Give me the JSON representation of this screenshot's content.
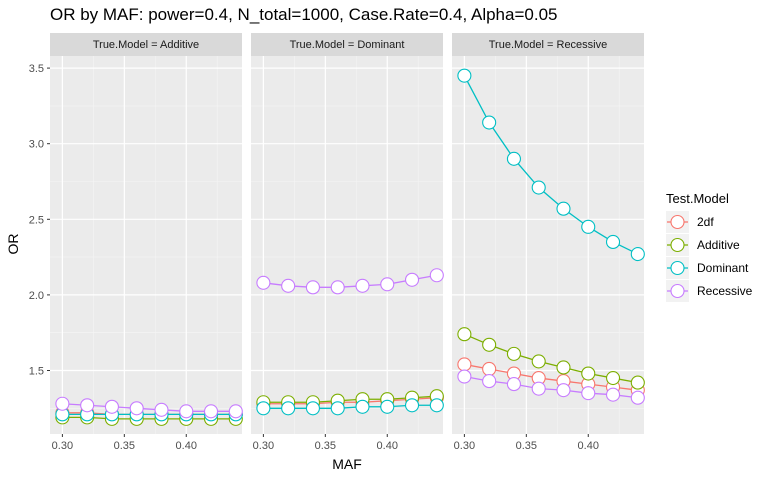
{
  "chart_data": {
    "type": "line",
    "title": "OR by MAF: power=0.4, N_total=1000, Case.Rate=0.4, Alpha=0.05",
    "xlabel": "MAF",
    "ylabel": "OR",
    "xlim": [
      0.29,
      0.445
    ],
    "ylim": [
      1.08,
      3.58
    ],
    "x_ticks": [
      0.3,
      0.35,
      0.4
    ],
    "x_tick_labels": [
      "0.30",
      "0.35",
      "0.40"
    ],
    "y_ticks": [
      1.5,
      2.0,
      2.5,
      3.0,
      3.5
    ],
    "y_tick_labels": [
      "1.5",
      "2.0",
      "2.5",
      "3.0",
      "3.5"
    ],
    "legend": {
      "title": "Test.Model",
      "position": "right",
      "entries": [
        "2df",
        "Additive",
        "Dominant",
        "Recessive"
      ]
    },
    "colors": {
      "2df": "#F8766D",
      "Additive": "#7CAE00",
      "Dominant": "#00BFC4",
      "Recessive": "#C77CFF"
    },
    "facets": [
      {
        "label": "True.Model = Additive",
        "x": [
          0.3,
          0.32,
          0.34,
          0.36,
          0.38,
          0.4,
          0.42,
          0.44
        ],
        "series": [
          {
            "name": "2df",
            "values": [
              1.22,
              1.22,
              1.21,
              1.21,
              1.21,
              1.21,
              1.21,
              1.21
            ]
          },
          {
            "name": "Additive",
            "values": [
              1.19,
              1.19,
              1.18,
              1.18,
              1.18,
              1.18,
              1.18,
              1.18
            ]
          },
          {
            "name": "Dominant",
            "values": [
              1.21,
              1.21,
              1.21,
              1.21,
              1.21,
              1.21,
              1.21,
              1.21
            ]
          },
          {
            "name": "Recessive",
            "values": [
              1.28,
              1.27,
              1.26,
              1.25,
              1.24,
              1.23,
              1.23,
              1.23
            ]
          }
        ]
      },
      {
        "label": "True.Model = Dominant",
        "x": [
          0.3,
          0.32,
          0.34,
          0.36,
          0.38,
          0.4,
          0.42,
          0.44
        ],
        "series": [
          {
            "name": "2df",
            "values": [
              1.28,
              1.28,
              1.28,
              1.29,
              1.29,
              1.3,
              1.31,
              1.32
            ]
          },
          {
            "name": "Additive",
            "values": [
              1.29,
              1.29,
              1.29,
              1.3,
              1.31,
              1.31,
              1.32,
              1.33
            ]
          },
          {
            "name": "Dominant",
            "values": [
              1.25,
              1.25,
              1.25,
              1.25,
              1.26,
              1.26,
              1.27,
              1.27
            ]
          },
          {
            "name": "Recessive",
            "values": [
              2.08,
              2.06,
              2.05,
              2.05,
              2.06,
              2.07,
              2.1,
              2.13
            ]
          }
        ]
      },
      {
        "label": "True.Model = Recessive",
        "x": [
          0.3,
          0.32,
          0.34,
          0.36,
          0.38,
          0.4,
          0.42,
          0.44
        ],
        "series": [
          {
            "name": "2df",
            "values": [
              1.54,
              1.51,
              1.48,
              1.45,
              1.43,
              1.41,
              1.39,
              1.37
            ]
          },
          {
            "name": "Additive",
            "values": [
              1.74,
              1.67,
              1.61,
              1.56,
              1.52,
              1.48,
              1.45,
              1.42
            ]
          },
          {
            "name": "Dominant",
            "values": [
              3.45,
              3.14,
              2.9,
              2.71,
              2.57,
              2.45,
              2.35,
              2.27
            ]
          },
          {
            "name": "Recessive",
            "values": [
              1.46,
              1.43,
              1.41,
              1.38,
              1.37,
              1.35,
              1.34,
              1.32
            ]
          }
        ]
      }
    ]
  }
}
